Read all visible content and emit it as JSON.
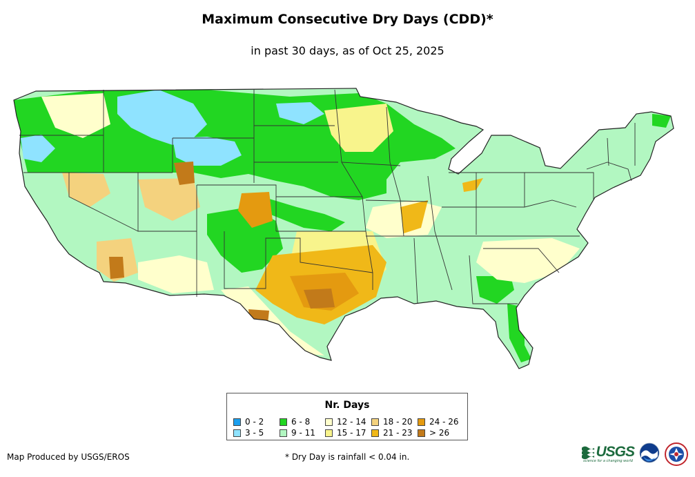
{
  "title": "Maximum Consecutive Dry Days (CDD)*",
  "subtitle": "in past 30 days, as of Oct 25, 2025",
  "legend": {
    "title": "Nr. Days",
    "items": [
      {
        "label": "0 - 2",
        "color": "#1b9fef"
      },
      {
        "label": "3 - 5",
        "color": "#8fe3ff"
      },
      {
        "label": "6 - 8",
        "color": "#22d622"
      },
      {
        "label": "9 - 11",
        "color": "#b2f7c1"
      },
      {
        "label": "12 - 14",
        "color": "#ffffcc"
      },
      {
        "label": "15 - 17",
        "color": "#f8f48c"
      },
      {
        "label": "18 - 20",
        "color": "#f4d27e"
      },
      {
        "label": "21 - 23",
        "color": "#f0b818"
      },
      {
        "label": "24 - 26",
        "color": "#e49a10"
      },
      {
        "label": "> 26",
        "color": "#c27a1a"
      }
    ]
  },
  "credit": "Map Produced by USGS/EROS",
  "footnote": "* Dry Day is rainfall < 0.04 in.",
  "logos": {
    "usgs": {
      "text": "USGS",
      "tagline": "science for a changing world",
      "color": "#1c6a3d"
    },
    "noaa": {
      "text": "NOAA"
    },
    "nws": {
      "text": "NWS"
    }
  }
}
